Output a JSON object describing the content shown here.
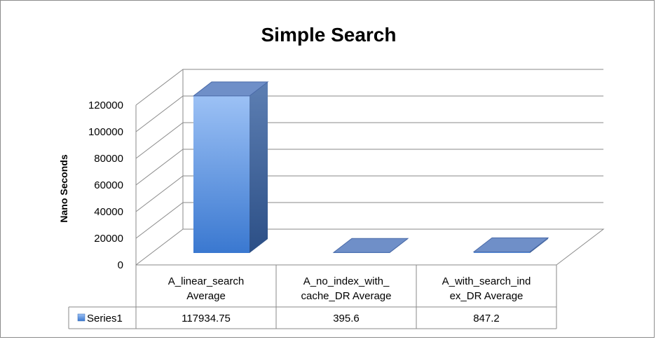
{
  "chart_data": {
    "type": "bar",
    "title": "Simple Search",
    "xlabel": "",
    "ylabel": "Nano Seconds",
    "ylim": [
      0,
      120000
    ],
    "yticks": [
      0,
      20000,
      40000,
      60000,
      80000,
      100000,
      120000
    ],
    "categories": [
      [
        "A_linear_search",
        "Average"
      ],
      [
        "A_no_index_with_",
        "cache_DR Average"
      ],
      [
        "A_with_search_ind",
        "ex_DR Average"
      ]
    ],
    "series": [
      {
        "name": "Series1",
        "values": [
          117934.75,
          395.6,
          847.2
        ],
        "value_labels": [
          "117934.75",
          "395.6",
          "847.2"
        ],
        "color": "#4f81bd"
      }
    ],
    "grid": true,
    "legend": "data-table"
  }
}
